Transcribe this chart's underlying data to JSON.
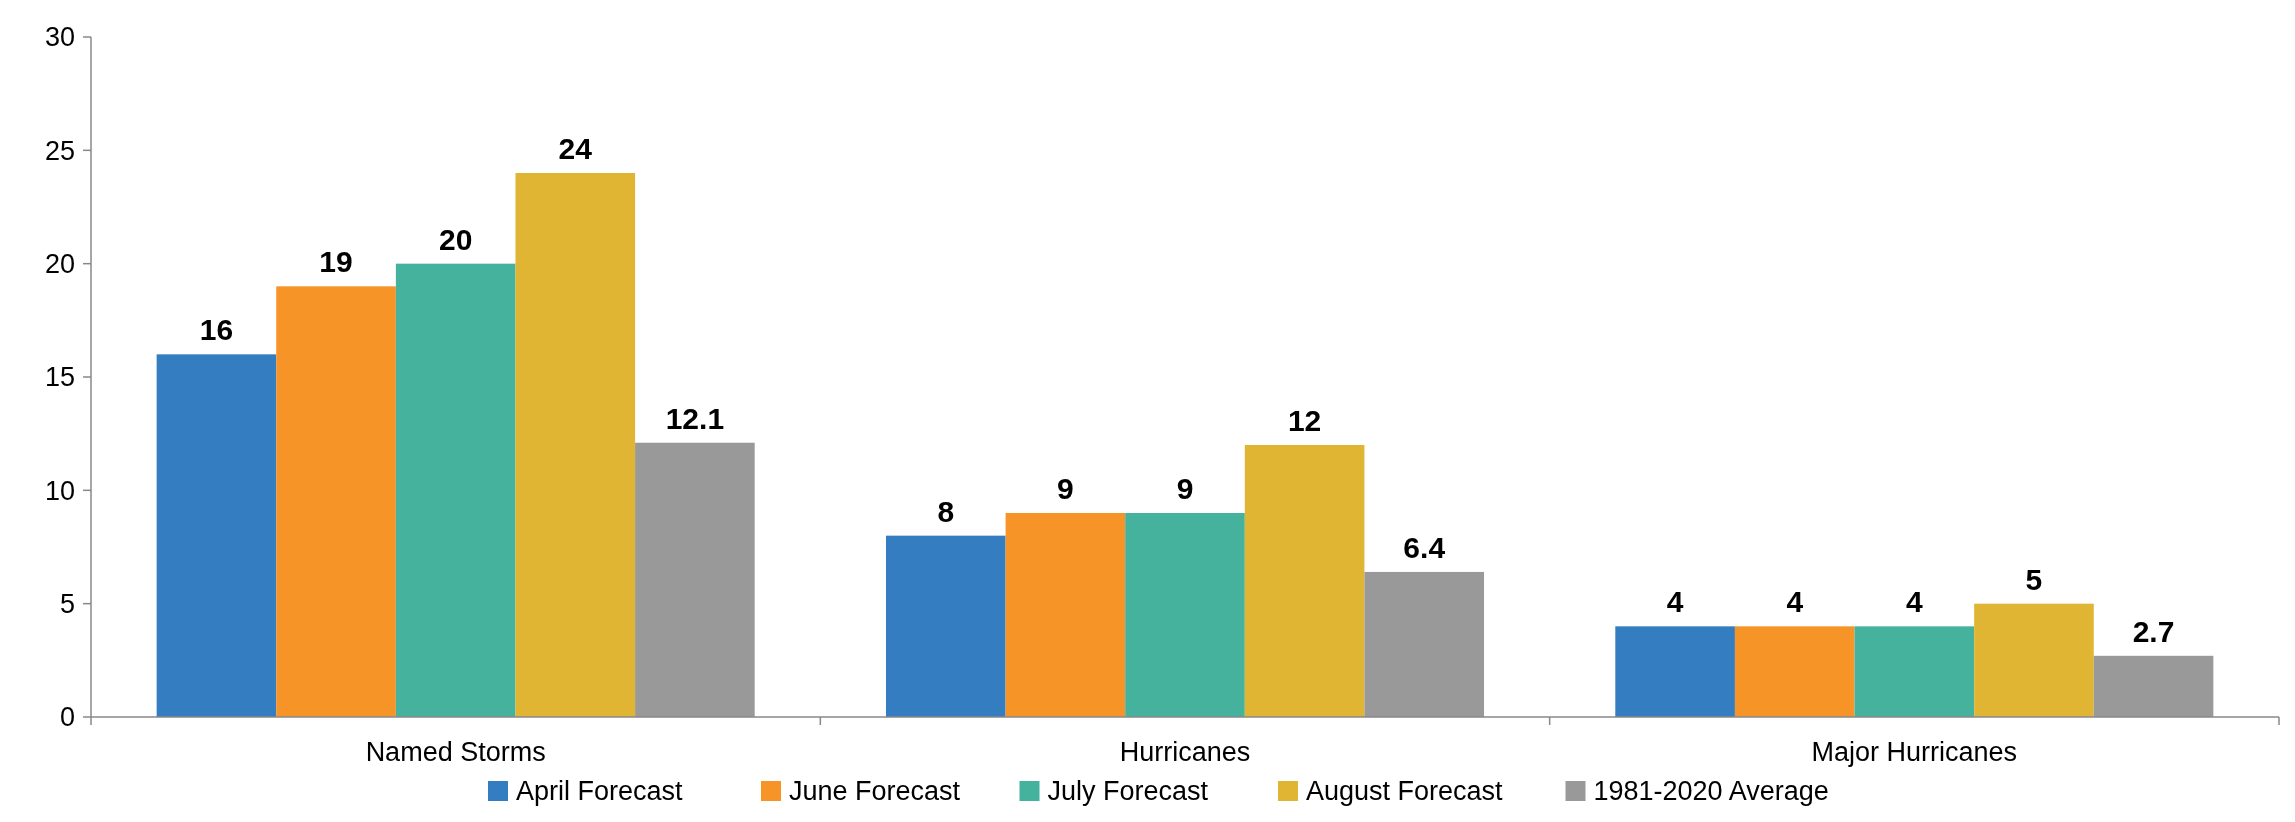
{
  "chart_data": {
    "type": "bar",
    "categories": [
      "Named Storms",
      "Hurricanes",
      "Major Hurricanes"
    ],
    "series": [
      {
        "name": "April Forecast",
        "color": "#337dc0",
        "values": [
          16,
          8,
          4
        ]
      },
      {
        "name": "June Forecast",
        "color": "#f79428",
        "values": [
          19,
          9,
          4
        ]
      },
      {
        "name": "July Forecast",
        "color": "#45b29d",
        "values": [
          20,
          9,
          4
        ]
      },
      {
        "name": "August Forecast",
        "color": "#e1b534",
        "values": [
          24,
          12,
          5
        ]
      },
      {
        "name": "1981-2020 Average",
        "color": "#999999",
        "values": [
          12.1,
          6.4,
          2.7
        ]
      }
    ],
    "ylim": [
      0,
      30
    ],
    "yticks": [
      0,
      5,
      10,
      15,
      20,
      25,
      30
    ],
    "grid": false,
    "legend": "bottom",
    "data_labels": true
  }
}
